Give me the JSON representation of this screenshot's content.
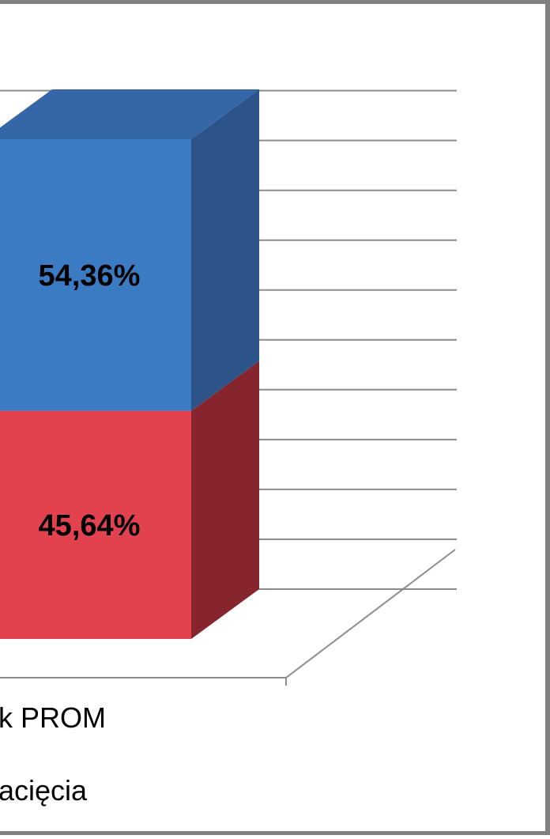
{
  "chart_data": {
    "type": "bar",
    "stacked": true,
    "three_d": true,
    "grid": true,
    "ylim": [
      0,
      100
    ],
    "categories": [
      ""
    ],
    "series": [
      {
        "name": "acięcia",
        "values": [
          45.64
        ],
        "data_label": "45,64%",
        "color": "#e2414e",
        "side_color": "#86252e"
      },
      {
        "name": "k PROM",
        "values": [
          54.36
        ],
        "data_label": "54,36%",
        "color": "#3b7bc4",
        "side_color": "#2c5489",
        "top_color": "#3466a8"
      }
    ],
    "legend": {
      "position": "bottom",
      "entries": [
        "k PROM",
        "acięcia"
      ]
    }
  }
}
